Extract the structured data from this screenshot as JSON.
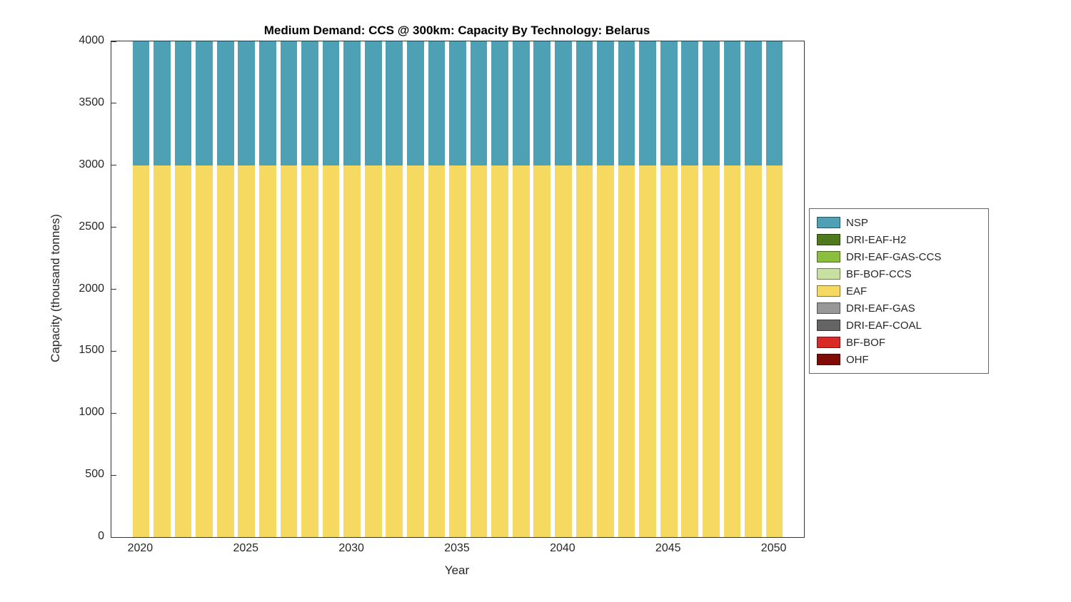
{
  "chart_data": {
    "type": "bar",
    "stacked": true,
    "title": "Medium Demand: CCS @ 300km: Capacity By Technology: Belarus",
    "xlabel": "Year",
    "ylabel": "Capacity (thousand tonnes)",
    "x": [
      2020,
      2021,
      2022,
      2023,
      2024,
      2025,
      2026,
      2027,
      2028,
      2029,
      2030,
      2031,
      2032,
      2033,
      2034,
      2035,
      2036,
      2037,
      2038,
      2039,
      2040,
      2041,
      2042,
      2043,
      2044,
      2045,
      2046,
      2047,
      2048,
      2049,
      2050
    ],
    "xlim": [
      2018.6,
      2051.4
    ],
    "ylim": [
      0,
      4000
    ],
    "x_ticks": [
      2020,
      2025,
      2030,
      2035,
      2040,
      2045,
      2050
    ],
    "y_ticks": [
      0,
      500,
      1000,
      1500,
      2000,
      2500,
      3000,
      3500,
      4000
    ],
    "bar_width_years": 0.8,
    "grid": false,
    "legend_position": "right-outside",
    "series": [
      {
        "name": "NSP",
        "color": "#4EA0B5",
        "values": [
          1000,
          1000,
          1000,
          1000,
          1000,
          1000,
          1000,
          1000,
          1000,
          1000,
          1000,
          1000,
          1000,
          1000,
          1000,
          1000,
          1000,
          1000,
          1000,
          1000,
          1000,
          1000,
          1000,
          1000,
          1000,
          1000,
          1000,
          1000,
          1000,
          1000,
          1000
        ]
      },
      {
        "name": "DRI-EAF-H2",
        "color": "#4F7A1D",
        "values": [
          0,
          0,
          0,
          0,
          0,
          0,
          0,
          0,
          0,
          0,
          0,
          0,
          0,
          0,
          0,
          0,
          0,
          0,
          0,
          0,
          0,
          0,
          0,
          0,
          0,
          0,
          0,
          0,
          0,
          0,
          0
        ]
      },
      {
        "name": "DRI-EAF-GAS-CCS",
        "color": "#8DBF3E",
        "values": [
          0,
          0,
          0,
          0,
          0,
          0,
          0,
          0,
          0,
          0,
          0,
          0,
          0,
          0,
          0,
          0,
          0,
          0,
          0,
          0,
          0,
          0,
          0,
          0,
          0,
          0,
          0,
          0,
          0,
          0,
          0
        ]
      },
      {
        "name": "BF-BOF-CCS",
        "color": "#C8E0A2",
        "values": [
          0,
          0,
          0,
          0,
          0,
          0,
          0,
          0,
          0,
          0,
          0,
          0,
          0,
          0,
          0,
          0,
          0,
          0,
          0,
          0,
          0,
          0,
          0,
          0,
          0,
          0,
          0,
          0,
          0,
          0,
          0
        ]
      },
      {
        "name": "EAF",
        "color": "#F5D960",
        "values": [
          3000,
          3000,
          3000,
          3000,
          3000,
          3000,
          3000,
          3000,
          3000,
          3000,
          3000,
          3000,
          3000,
          3000,
          3000,
          3000,
          3000,
          3000,
          3000,
          3000,
          3000,
          3000,
          3000,
          3000,
          3000,
          3000,
          3000,
          3000,
          3000,
          3000,
          3000
        ]
      },
      {
        "name": "DRI-EAF-GAS",
        "color": "#979797",
        "values": [
          0,
          0,
          0,
          0,
          0,
          0,
          0,
          0,
          0,
          0,
          0,
          0,
          0,
          0,
          0,
          0,
          0,
          0,
          0,
          0,
          0,
          0,
          0,
          0,
          0,
          0,
          0,
          0,
          0,
          0,
          0
        ]
      },
      {
        "name": "DRI-EAF-COAL",
        "color": "#646464",
        "values": [
          0,
          0,
          0,
          0,
          0,
          0,
          0,
          0,
          0,
          0,
          0,
          0,
          0,
          0,
          0,
          0,
          0,
          0,
          0,
          0,
          0,
          0,
          0,
          0,
          0,
          0,
          0,
          0,
          0,
          0,
          0
        ]
      },
      {
        "name": "BF-BOF",
        "color": "#D92A25",
        "values": [
          0,
          0,
          0,
          0,
          0,
          0,
          0,
          0,
          0,
          0,
          0,
          0,
          0,
          0,
          0,
          0,
          0,
          0,
          0,
          0,
          0,
          0,
          0,
          0,
          0,
          0,
          0,
          0,
          0,
          0,
          0
        ]
      },
      {
        "name": "OHF",
        "color": "#800A06",
        "values": [
          0,
          0,
          0,
          0,
          0,
          0,
          0,
          0,
          0,
          0,
          0,
          0,
          0,
          0,
          0,
          0,
          0,
          0,
          0,
          0,
          0,
          0,
          0,
          0,
          0,
          0,
          0,
          0,
          0,
          0,
          0
        ]
      }
    ]
  }
}
